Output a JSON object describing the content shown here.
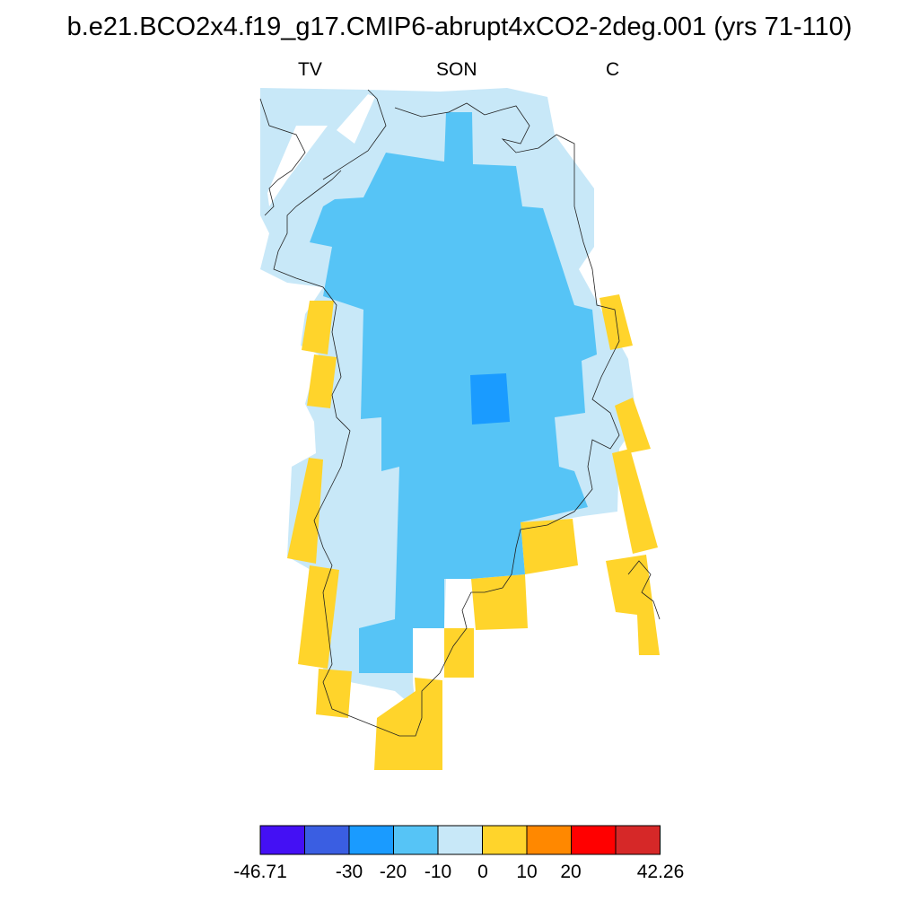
{
  "title": "b.e21.BCO2x4.f19_g17.CMIP6-abrupt4xCO2-2deg.001 (yrs 71-110)",
  "subtitles": {
    "left": "TV",
    "center": "SON",
    "right": "C"
  },
  "colorbar": {
    "colors": [
      "#4410f4",
      "#3a5ee2",
      "#1a9bff",
      "#56c4f6",
      "#c8e8f8",
      "#ffd42b",
      "#ff8800",
      "#ff0000",
      "#d62828"
    ],
    "labels": [
      "-46.71",
      "-30",
      "-20",
      "-10",
      "0",
      "10",
      "20",
      "42.26"
    ]
  },
  "map_data": {
    "type": "filled-contour-map",
    "region": "Greenland",
    "min": -46.71,
    "max": 42.26,
    "levels": [
      -40,
      -30,
      -20,
      -10,
      0,
      10,
      20,
      30
    ]
  }
}
